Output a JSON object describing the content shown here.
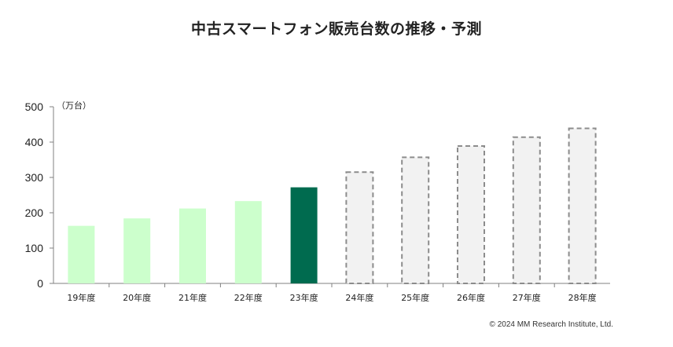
{
  "title": "中古スマートフォン販売台数の推移・予測",
  "copyright": "© 2024 MM Research Institute, Ltd.",
  "colors": {
    "actual": "#ccffcc",
    "latest": "#006b4f",
    "forecast_fill": "#f2f2f2",
    "forecast_stroke": "#8c8c8c",
    "axis": "#808080"
  },
  "chart_data": {
    "type": "bar",
    "title": "中古スマートフォン販売台数の推移・予測",
    "unit_label": "（万台）",
    "categories": [
      "19年度",
      "20年度",
      "21年度",
      "22年度",
      "23年度",
      "24年度",
      "25年度",
      "26年度",
      "27年度",
      "28年度"
    ],
    "values": [
      163,
      184,
      212,
      233,
      272,
      315,
      357,
      389,
      414,
      439
    ],
    "bar_styles": [
      "actual",
      "actual",
      "actual",
      "actual",
      "latest",
      "forecast",
      "forecast",
      "forecast",
      "forecast",
      "forecast"
    ],
    "ylim": [
      0,
      500
    ],
    "yticks": [
      0,
      100,
      200,
      300,
      400,
      500
    ],
    "grid": false,
    "legend": "none"
  }
}
